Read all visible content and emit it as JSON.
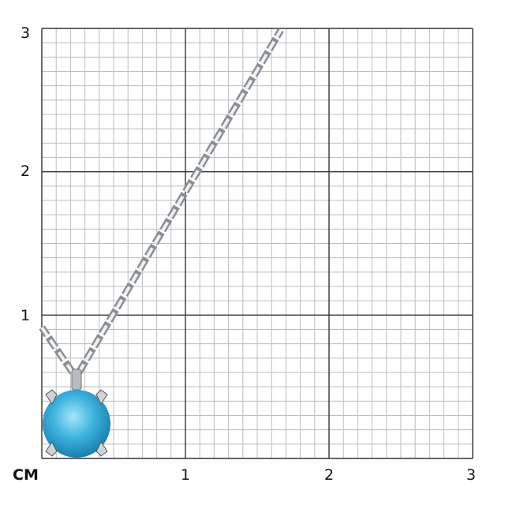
{
  "scale": {
    "unit": "CM",
    "y_ticks": [
      "3",
      "2",
      "1"
    ],
    "x_ticks": [
      "1",
      "2",
      "3"
    ],
    "subdivisions_per_unit": 10
  },
  "product": {
    "stone_color": "#3fb4de",
    "metal_color": "#c8ccd0"
  }
}
